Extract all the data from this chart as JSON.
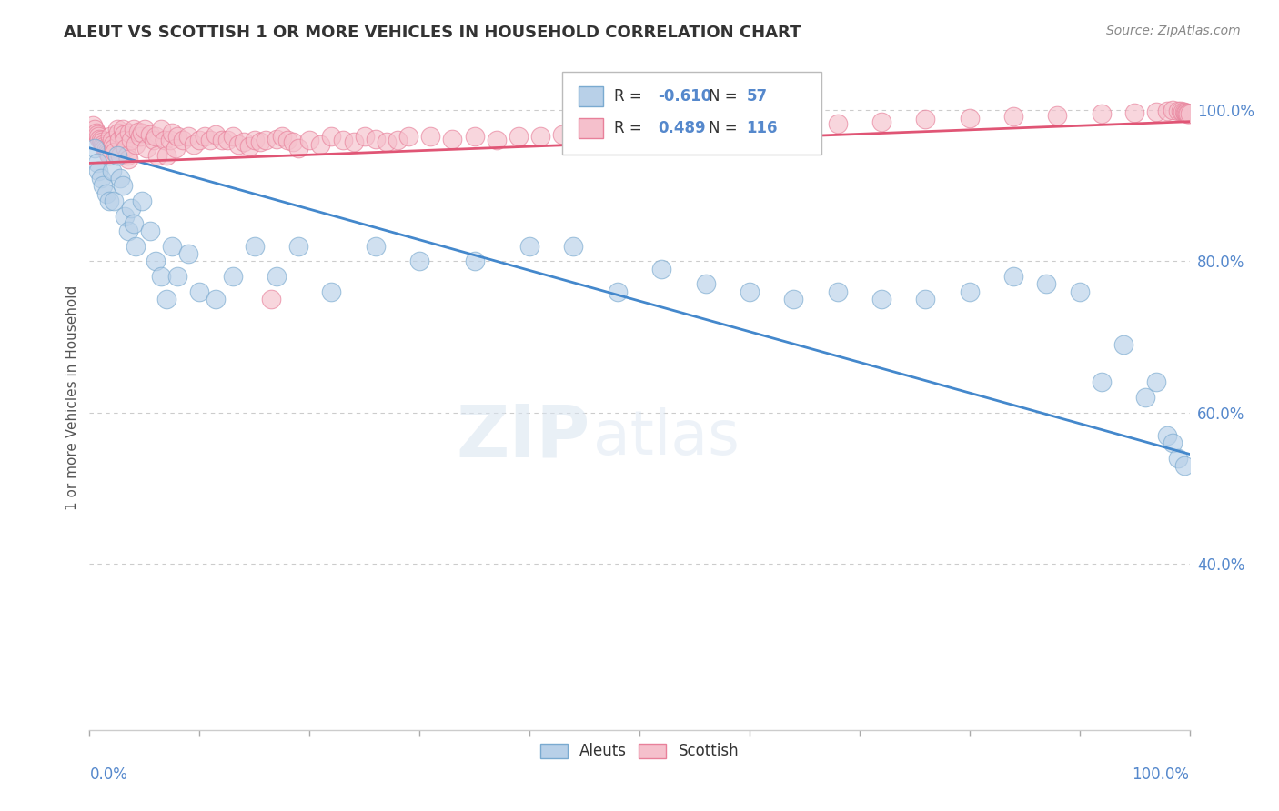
{
  "title": "ALEUT VS SCOTTISH 1 OR MORE VEHICLES IN HOUSEHOLD CORRELATION CHART",
  "source": "Source: ZipAtlas.com",
  "ylabel": "1 or more Vehicles in Household",
  "xlim": [
    0.0,
    1.0
  ],
  "ylim": [
    0.18,
    1.06
  ],
  "yticks": [
    0.4,
    0.6,
    0.8,
    1.0
  ],
  "ytick_labels": [
    "40.0%",
    "60.0%",
    "80.0%",
    "100.0%"
  ],
  "aleuts_color": "#b8d0e8",
  "aleuts_edge_color": "#7aaad0",
  "scottish_color": "#f5c0cc",
  "scottish_edge_color": "#e8809a",
  "aleuts_line_color": "#4488cc",
  "scottish_line_color": "#e05575",
  "legend_r_aleuts": "-0.610",
  "legend_n_aleuts": "57",
  "legend_r_scottish": "0.489",
  "legend_n_scottish": "116",
  "aleuts_x": [
    0.005,
    0.007,
    0.008,
    0.01,
    0.012,
    0.015,
    0.018,
    0.02,
    0.022,
    0.025,
    0.028,
    0.03,
    0.032,
    0.035,
    0.038,
    0.04,
    0.042,
    0.048,
    0.055,
    0.06,
    0.065,
    0.07,
    0.075,
    0.08,
    0.09,
    0.1,
    0.115,
    0.13,
    0.15,
    0.17,
    0.19,
    0.22,
    0.26,
    0.3,
    0.35,
    0.4,
    0.44,
    0.48,
    0.52,
    0.56,
    0.6,
    0.64,
    0.68,
    0.72,
    0.76,
    0.8,
    0.84,
    0.87,
    0.9,
    0.92,
    0.94,
    0.96,
    0.97,
    0.98,
    0.985,
    0.99,
    0.995
  ],
  "aleuts_y": [
    0.95,
    0.93,
    0.92,
    0.91,
    0.9,
    0.89,
    0.88,
    0.92,
    0.88,
    0.94,
    0.91,
    0.9,
    0.86,
    0.84,
    0.87,
    0.85,
    0.82,
    0.88,
    0.84,
    0.8,
    0.78,
    0.75,
    0.82,
    0.78,
    0.81,
    0.76,
    0.75,
    0.78,
    0.82,
    0.78,
    0.82,
    0.76,
    0.82,
    0.8,
    0.8,
    0.82,
    0.82,
    0.76,
    0.79,
    0.77,
    0.76,
    0.75,
    0.76,
    0.75,
    0.75,
    0.76,
    0.78,
    0.77,
    0.76,
    0.64,
    0.69,
    0.62,
    0.64,
    0.57,
    0.56,
    0.54,
    0.53
  ],
  "scottish_x": [
    0.003,
    0.005,
    0.006,
    0.007,
    0.008,
    0.009,
    0.01,
    0.011,
    0.012,
    0.013,
    0.014,
    0.015,
    0.016,
    0.017,
    0.018,
    0.019,
    0.02,
    0.021,
    0.022,
    0.023,
    0.025,
    0.026,
    0.027,
    0.028,
    0.03,
    0.031,
    0.032,
    0.033,
    0.034,
    0.035,
    0.036,
    0.038,
    0.04,
    0.042,
    0.044,
    0.046,
    0.048,
    0.05,
    0.052,
    0.055,
    0.058,
    0.06,
    0.062,
    0.065,
    0.068,
    0.07,
    0.073,
    0.075,
    0.078,
    0.08,
    0.085,
    0.09,
    0.095,
    0.1,
    0.105,
    0.11,
    0.115,
    0.12,
    0.125,
    0.13,
    0.135,
    0.14,
    0.145,
    0.15,
    0.155,
    0.16,
    0.165,
    0.17,
    0.175,
    0.18,
    0.185,
    0.19,
    0.2,
    0.21,
    0.22,
    0.23,
    0.24,
    0.25,
    0.26,
    0.27,
    0.28,
    0.29,
    0.31,
    0.33,
    0.35,
    0.37,
    0.39,
    0.41,
    0.43,
    0.45,
    0.48,
    0.51,
    0.54,
    0.57,
    0.6,
    0.64,
    0.68,
    0.72,
    0.76,
    0.8,
    0.84,
    0.88,
    0.92,
    0.95,
    0.97,
    0.98,
    0.985,
    0.99,
    0.992,
    0.994,
    0.995,
    0.996,
    0.997,
    0.998,
    0.999,
    1.0
  ],
  "scottish_y": [
    0.98,
    0.975,
    0.97,
    0.968,
    0.965,
    0.962,
    0.96,
    0.958,
    0.955,
    0.952,
    0.95,
    0.948,
    0.945,
    0.942,
    0.94,
    0.965,
    0.96,
    0.955,
    0.95,
    0.945,
    0.975,
    0.97,
    0.96,
    0.94,
    0.975,
    0.968,
    0.96,
    0.95,
    0.94,
    0.935,
    0.97,
    0.96,
    0.975,
    0.955,
    0.972,
    0.965,
    0.97,
    0.975,
    0.95,
    0.968,
    0.96,
    0.965,
    0.94,
    0.975,
    0.96,
    0.94,
    0.96,
    0.97,
    0.95,
    0.965,
    0.96,
    0.965,
    0.955,
    0.96,
    0.965,
    0.96,
    0.968,
    0.96,
    0.96,
    0.965,
    0.955,
    0.958,
    0.952,
    0.96,
    0.958,
    0.96,
    0.75,
    0.962,
    0.965,
    0.96,
    0.958,
    0.95,
    0.96,
    0.955,
    0.965,
    0.96,
    0.958,
    0.965,
    0.962,
    0.958,
    0.96,
    0.965,
    0.965,
    0.962,
    0.965,
    0.96,
    0.965,
    0.965,
    0.968,
    0.97,
    0.97,
    0.972,
    0.975,
    0.975,
    0.978,
    0.98,
    0.982,
    0.985,
    0.988,
    0.99,
    0.992,
    0.993,
    0.995,
    0.997,
    0.998,
    0.999,
    1.0,
    0.999,
    0.999,
    0.998,
    0.998,
    0.997,
    0.997,
    0.996,
    0.996,
    0.995
  ],
  "watermark_text": "ZIP",
  "watermark_text2": "atlas",
  "background_color": "#ffffff",
  "grid_color": "#cccccc",
  "tick_color": "#5588cc",
  "title_color": "#333333",
  "source_color": "#888888"
}
